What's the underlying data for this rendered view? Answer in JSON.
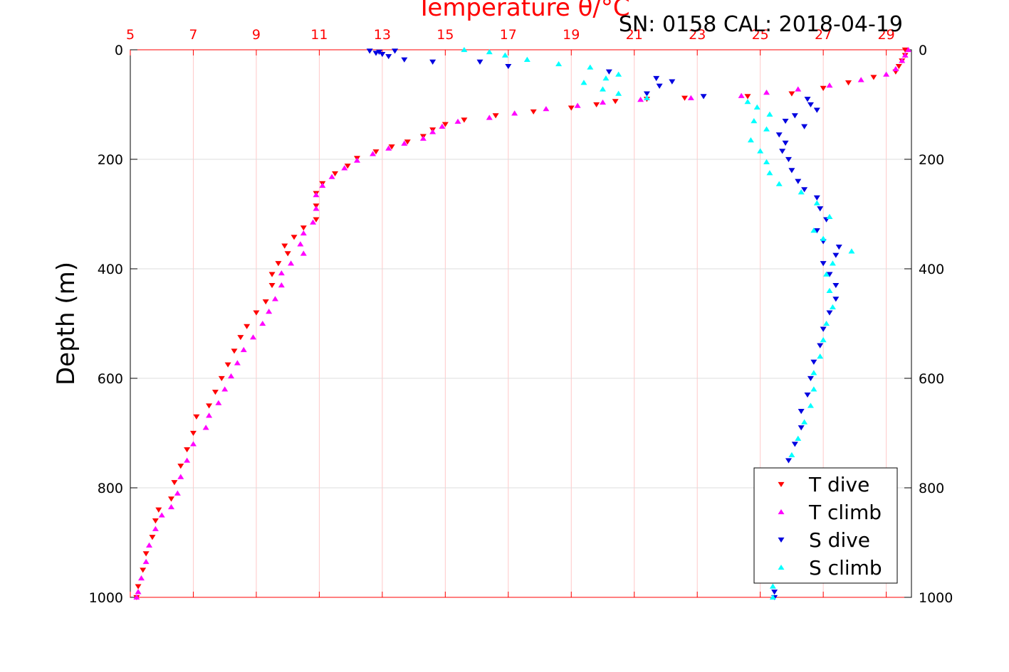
{
  "chart_data": {
    "type": "scatter",
    "title": "Temperature θ/°C",
    "subtitle": "SN: 0158  CAL: 2018-04-19",
    "ylabel": "Depth (m)",
    "xlim": [
      5,
      29.8
    ],
    "ylim": [
      0,
      1000
    ],
    "y_reversed": true,
    "grid": true,
    "legend_position": "bottom-right",
    "x_ticks": [
      5,
      7,
      9,
      11,
      13,
      15,
      17,
      19,
      21,
      23,
      25,
      27,
      29
    ],
    "y_ticks": [
      0,
      200,
      400,
      600,
      800,
      1000
    ],
    "colors": {
      "t_axis": "#ff0000",
      "t_dive": "#ff0000",
      "t_climb": "#ff00ff",
      "s_dive": "#0000e0",
      "s_climb": "#00ffff"
    },
    "series": [
      {
        "name": "T dive",
        "marker": "triangle-down",
        "color": "#ff0000",
        "points": [
          [
            29.6,
            0
          ],
          [
            29.6,
            10
          ],
          [
            29.5,
            20
          ],
          [
            29.4,
            30
          ],
          [
            29.3,
            40
          ],
          [
            28.6,
            50
          ],
          [
            27.8,
            60
          ],
          [
            27.0,
            70
          ],
          [
            26.0,
            80
          ],
          [
            24.6,
            85
          ],
          [
            22.6,
            88
          ],
          [
            21.4,
            90
          ],
          [
            20.4,
            94
          ],
          [
            19.8,
            100
          ],
          [
            19.0,
            106
          ],
          [
            17.8,
            113
          ],
          [
            16.6,
            120
          ],
          [
            15.6,
            128
          ],
          [
            15.0,
            136
          ],
          [
            14.6,
            146
          ],
          [
            14.3,
            158
          ],
          [
            13.8,
            168
          ],
          [
            13.3,
            177
          ],
          [
            12.8,
            186
          ],
          [
            12.2,
            198
          ],
          [
            11.9,
            212
          ],
          [
            11.5,
            226
          ],
          [
            11.1,
            244
          ],
          [
            10.9,
            262
          ],
          [
            10.9,
            285
          ],
          [
            10.9,
            310
          ],
          [
            10.5,
            325
          ],
          [
            10.2,
            342
          ],
          [
            9.9,
            358
          ],
          [
            10.0,
            372
          ],
          [
            9.7,
            390
          ],
          [
            9.5,
            410
          ],
          [
            9.5,
            430
          ],
          [
            9.3,
            460
          ],
          [
            9.0,
            480
          ],
          [
            8.7,
            505
          ],
          [
            8.5,
            525
          ],
          [
            8.3,
            550
          ],
          [
            8.1,
            575
          ],
          [
            7.9,
            600
          ],
          [
            7.7,
            625
          ],
          [
            7.5,
            650
          ],
          [
            7.1,
            670
          ],
          [
            7.0,
            700
          ],
          [
            6.8,
            730
          ],
          [
            6.6,
            760
          ],
          [
            6.4,
            790
          ],
          [
            6.3,
            820
          ],
          [
            5.9,
            840
          ],
          [
            5.8,
            860
          ],
          [
            5.7,
            890
          ],
          [
            5.5,
            920
          ],
          [
            5.4,
            950
          ],
          [
            5.25,
            980
          ],
          [
            5.2,
            1000
          ]
        ]
      },
      {
        "name": "T climb",
        "marker": "triangle-up",
        "color": "#ff00ff",
        "points": [
          [
            29.7,
            0
          ],
          [
            29.6,
            10
          ],
          [
            29.5,
            20
          ],
          [
            29.3,
            35
          ],
          [
            29.0,
            45
          ],
          [
            28.2,
            55
          ],
          [
            27.2,
            65
          ],
          [
            26.2,
            72
          ],
          [
            25.2,
            78
          ],
          [
            24.4,
            84
          ],
          [
            22.8,
            88
          ],
          [
            21.2,
            91
          ],
          [
            20.0,
            96
          ],
          [
            19.2,
            102
          ],
          [
            18.2,
            108
          ],
          [
            17.2,
            116
          ],
          [
            16.4,
            124
          ],
          [
            15.4,
            131
          ],
          [
            14.9,
            140
          ],
          [
            14.6,
            150
          ],
          [
            14.3,
            162
          ],
          [
            13.7,
            171
          ],
          [
            13.2,
            180
          ],
          [
            12.7,
            190
          ],
          [
            12.2,
            202
          ],
          [
            11.8,
            216
          ],
          [
            11.4,
            232
          ],
          [
            11.1,
            248
          ],
          [
            10.9,
            265
          ],
          [
            10.9,
            290
          ],
          [
            10.8,
            315
          ],
          [
            10.5,
            335
          ],
          [
            10.4,
            355
          ],
          [
            10.5,
            372
          ],
          [
            10.1,
            390
          ],
          [
            9.8,
            408
          ],
          [
            9.8,
            430
          ],
          [
            9.6,
            455
          ],
          [
            9.4,
            478
          ],
          [
            9.2,
            500
          ],
          [
            8.9,
            525
          ],
          [
            8.6,
            548
          ],
          [
            8.4,
            572
          ],
          [
            8.2,
            596
          ],
          [
            8.0,
            620
          ],
          [
            7.8,
            645
          ],
          [
            7.5,
            668
          ],
          [
            7.4,
            690
          ],
          [
            7.0,
            720
          ],
          [
            6.8,
            750
          ],
          [
            6.6,
            780
          ],
          [
            6.5,
            810
          ],
          [
            6.3,
            835
          ],
          [
            6.0,
            850
          ],
          [
            5.8,
            875
          ],
          [
            5.6,
            905
          ],
          [
            5.5,
            935
          ],
          [
            5.35,
            965
          ],
          [
            5.25,
            990
          ],
          [
            5.2,
            1000
          ]
        ]
      },
      {
        "name": "S dive",
        "marker": "triangle-down",
        "color": "#0000e0",
        "points": [
          [
            12.6,
            2
          ],
          [
            12.9,
            4
          ],
          [
            13.4,
            2
          ],
          [
            13.0,
            8
          ],
          [
            12.8,
            6
          ],
          [
            13.2,
            12
          ],
          [
            13.7,
            18
          ],
          [
            14.6,
            22
          ],
          [
            16.1,
            22
          ],
          [
            17.0,
            30
          ],
          [
            20.2,
            40
          ],
          [
            21.7,
            52
          ],
          [
            22.2,
            58
          ],
          [
            21.8,
            66
          ],
          [
            21.4,
            80
          ],
          [
            23.2,
            85
          ],
          [
            26.5,
            90
          ],
          [
            26.6,
            100
          ],
          [
            26.8,
            110
          ],
          [
            26.1,
            120
          ],
          [
            25.8,
            130
          ],
          [
            26.4,
            140
          ],
          [
            25.6,
            155
          ],
          [
            25.8,
            170
          ],
          [
            25.7,
            185
          ],
          [
            25.9,
            200
          ],
          [
            26.0,
            220
          ],
          [
            26.2,
            240
          ],
          [
            26.4,
            255
          ],
          [
            26.8,
            270
          ],
          [
            26.9,
            290
          ],
          [
            27.1,
            310
          ],
          [
            26.8,
            330
          ],
          [
            27.0,
            350
          ],
          [
            27.5,
            360
          ],
          [
            27.4,
            375
          ],
          [
            27.0,
            390
          ],
          [
            27.2,
            410
          ],
          [
            27.4,
            430
          ],
          [
            27.4,
            455
          ],
          [
            27.2,
            480
          ],
          [
            27.0,
            510
          ],
          [
            26.9,
            540
          ],
          [
            26.7,
            570
          ],
          [
            26.6,
            600
          ],
          [
            26.5,
            630
          ],
          [
            26.3,
            660
          ],
          [
            26.3,
            690
          ],
          [
            26.1,
            720
          ],
          [
            25.9,
            750
          ],
          [
            25.8,
            780
          ],
          [
            25.7,
            810
          ],
          [
            25.6,
            840
          ],
          [
            25.5,
            870
          ],
          [
            25.5,
            900
          ],
          [
            25.45,
            930
          ],
          [
            25.45,
            960
          ],
          [
            25.45,
            990
          ],
          [
            25.45,
            1000
          ]
        ]
      },
      {
        "name": "S climb",
        "marker": "triangle-up",
        "color": "#00ffff",
        "points": [
          [
            15.6,
            0
          ],
          [
            16.4,
            4
          ],
          [
            16.9,
            10
          ],
          [
            17.6,
            18
          ],
          [
            18.6,
            26
          ],
          [
            19.6,
            32
          ],
          [
            20.5,
            45
          ],
          [
            20.1,
            52
          ],
          [
            19.4,
            60
          ],
          [
            20.0,
            72
          ],
          [
            20.5,
            80
          ],
          [
            21.4,
            88
          ],
          [
            24.6,
            95
          ],
          [
            24.9,
            105
          ],
          [
            25.3,
            118
          ],
          [
            24.8,
            130
          ],
          [
            25.2,
            145
          ],
          [
            24.7,
            165
          ],
          [
            25.0,
            185
          ],
          [
            25.2,
            205
          ],
          [
            25.3,
            225
          ],
          [
            25.6,
            245
          ],
          [
            26.3,
            260
          ],
          [
            26.8,
            280
          ],
          [
            27.2,
            305
          ],
          [
            26.7,
            330
          ],
          [
            27.0,
            345
          ],
          [
            27.9,
            368
          ],
          [
            27.3,
            390
          ],
          [
            27.1,
            410
          ],
          [
            27.2,
            440
          ],
          [
            27.3,
            470
          ],
          [
            27.1,
            500
          ],
          [
            27.0,
            530
          ],
          [
            26.9,
            560
          ],
          [
            26.7,
            590
          ],
          [
            26.7,
            620
          ],
          [
            26.6,
            650
          ],
          [
            26.4,
            680
          ],
          [
            26.2,
            710
          ],
          [
            26.0,
            740
          ],
          [
            25.8,
            770
          ],
          [
            25.7,
            800
          ],
          [
            25.6,
            830
          ],
          [
            25.6,
            860
          ],
          [
            25.5,
            890
          ],
          [
            25.5,
            920
          ],
          [
            25.4,
            950
          ],
          [
            25.4,
            980
          ],
          [
            25.4,
            1000
          ]
        ]
      }
    ]
  }
}
